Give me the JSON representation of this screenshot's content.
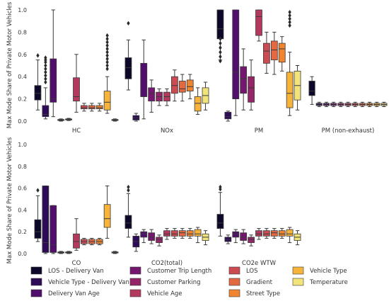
{
  "chart_data": {
    "type": "box",
    "ylabel": "Max Mode Share of Private Motor Vehicles",
    "ylim": [
      0,
      1.0
    ],
    "yticks": [
      "0.0",
      "0.2",
      "0.4",
      "0.6",
      "0.8",
      "1.0"
    ],
    "grid": false,
    "legend_position": "bottom",
    "series": [
      {
        "name": "LOS - Delivery Van",
        "color": "#0d0829"
      },
      {
        "name": "Vehicle Type - Delivery Van",
        "color": "#2d0b59"
      },
      {
        "name": "Delivery Van Age",
        "color": "#520e6d"
      },
      {
        "name": "Customer Trip Length",
        "color": "#74176e"
      },
      {
        "name": "Customer Parking",
        "color": "#952567"
      },
      {
        "name": "Vehicle Age",
        "color": "#b33a5d"
      },
      {
        "name": "LOS",
        "color": "#cc4b52"
      },
      {
        "name": "Gradient",
        "color": "#e46840"
      },
      {
        "name": "Street Type",
        "color": "#f1842e"
      },
      {
        "name": "Vehicle Type",
        "color": "#f6b43c"
      },
      {
        "name": "Temperature",
        "color": "#f2e47a"
      }
    ],
    "panels": [
      {
        "label": "HC",
        "boxes": [
          {
            "s": 0,
            "min": 0.1,
            "q1": 0.19,
            "med": 0.25,
            "q3": 0.32,
            "max": 0.55,
            "out": [
              0.59
            ]
          },
          {
            "s": 1,
            "min": 0.02,
            "q1": 0.04,
            "med": 0.06,
            "q3": 0.14,
            "max": 0.3,
            "out": [
              0.35,
              0.38,
              0.41,
              0.44,
              0.47,
              0.5,
              0.53,
              0.55,
              0.57
            ]
          },
          {
            "s": 2,
            "min": 0.04,
            "q1": 0.17,
            "med": 0.2,
            "q3": 0.56,
            "max": 1.0,
            "out": []
          },
          {
            "s": 3,
            "min": 0.0,
            "q1": 0.005,
            "med": 0.01,
            "q3": 0.015,
            "max": 0.02,
            "out": []
          },
          {
            "s": 4,
            "min": 0.005,
            "q1": 0.01,
            "med": 0.015,
            "q3": 0.02,
            "max": 0.025,
            "out": []
          },
          {
            "s": 5,
            "min": 0.08,
            "q1": 0.18,
            "med": 0.22,
            "q3": 0.39,
            "max": 0.6,
            "out": []
          },
          {
            "s": 6,
            "min": 0.09,
            "q1": 0.11,
            "med": 0.12,
            "q3": 0.14,
            "max": 0.16,
            "out": []
          },
          {
            "s": 7,
            "min": 0.09,
            "q1": 0.11,
            "med": 0.12,
            "q3": 0.14,
            "max": 0.16,
            "out": []
          },
          {
            "s": 8,
            "min": 0.09,
            "q1": 0.11,
            "med": 0.12,
            "q3": 0.14,
            "max": 0.16,
            "out": []
          },
          {
            "s": 9,
            "min": 0.07,
            "q1": 0.1,
            "med": 0.17,
            "q3": 0.27,
            "max": 0.4,
            "out": [
              0.47,
              0.5,
              0.53,
              0.56,
              0.59,
              0.62,
              0.65,
              0.68,
              0.71,
              0.74,
              0.77
            ]
          },
          {
            "s": 10,
            "min": 0.0,
            "q1": 0.005,
            "med": 0.01,
            "q3": 0.015,
            "max": 0.02,
            "out": []
          }
        ]
      },
      {
        "label": "NOx",
        "boxes": [
          {
            "s": 0,
            "min": 0.28,
            "q1": 0.38,
            "med": 0.48,
            "q3": 0.57,
            "max": 0.73,
            "out": [
              0.88
            ]
          },
          {
            "s": 1,
            "min": 0.0,
            "q1": 0.01,
            "med": 0.03,
            "q3": 0.05,
            "max": 0.07,
            "out": []
          },
          {
            "s": 2,
            "min": 0.02,
            "q1": 0.22,
            "med": 0.22,
            "q3": 0.52,
            "max": 0.73,
            "out": []
          },
          {
            "s": 3,
            "min": 0.08,
            "q1": 0.18,
            "med": 0.25,
            "q3": 0.3,
            "max": 0.37,
            "out": []
          },
          {
            "s": 4,
            "min": 0.14,
            "q1": 0.18,
            "med": 0.22,
            "q3": 0.26,
            "max": 0.29,
            "out": []
          },
          {
            "s": 5,
            "min": 0.14,
            "q1": 0.18,
            "med": 0.22,
            "q3": 0.26,
            "max": 0.29,
            "out": []
          },
          {
            "s": 6,
            "min": 0.18,
            "q1": 0.25,
            "med": 0.32,
            "q3": 0.4,
            "max": 0.46,
            "out": []
          },
          {
            "s": 7,
            "min": 0.18,
            "q1": 0.26,
            "med": 0.29,
            "q3": 0.36,
            "max": 0.42,
            "out": []
          },
          {
            "s": 8,
            "min": 0.2,
            "q1": 0.27,
            "med": 0.31,
            "q3": 0.37,
            "max": 0.42,
            "out": []
          },
          {
            "s": 9,
            "min": 0.06,
            "q1": 0.09,
            "med": 0.16,
            "q3": 0.22,
            "max": 0.3,
            "out": []
          },
          {
            "s": 10,
            "min": 0.1,
            "q1": 0.16,
            "med": 0.23,
            "q3": 0.3,
            "max": 0.35,
            "out": []
          }
        ]
      },
      {
        "label": "PM",
        "boxes": [
          {
            "s": 0,
            "min": 0.55,
            "q1": 0.74,
            "med": 0.83,
            "q3": 1.0,
            "max": 1.0,
            "out": [
              0.54,
              0.58,
              0.62,
              0.66,
              0.7,
              0.74
            ]
          },
          {
            "s": 1,
            "min": 0.0,
            "q1": 0.02,
            "med": 0.04,
            "q3": 0.08,
            "max": 0.09,
            "out": []
          },
          {
            "s": 2,
            "min": 0.05,
            "q1": 0.2,
            "med": 0.44,
            "q3": 1.0,
            "max": 1.0,
            "out": []
          },
          {
            "s": 3,
            "min": 0.1,
            "q1": 0.25,
            "med": 0.38,
            "q3": 0.49,
            "max": 0.65,
            "out": []
          },
          {
            "s": 4,
            "min": 0.1,
            "q1": 0.17,
            "med": 0.3,
            "q3": 0.4,
            "max": 0.55,
            "out": []
          },
          {
            "s": 5,
            "min": 0.72,
            "q1": 0.77,
            "med": 0.94,
            "q3": 1.0,
            "max": 1.0,
            "out": []
          },
          {
            "s": 6,
            "min": 0.43,
            "q1": 0.52,
            "med": 0.63,
            "q3": 0.7,
            "max": 0.8,
            "out": []
          },
          {
            "s": 7,
            "min": 0.42,
            "q1": 0.55,
            "med": 0.64,
            "q3": 0.72,
            "max": 0.8,
            "out": []
          },
          {
            "s": 8,
            "min": 0.45,
            "q1": 0.53,
            "med": 0.65,
            "q3": 0.7,
            "max": 0.76,
            "out": []
          },
          {
            "s": 9,
            "min": 0.05,
            "q1": 0.12,
            "med": 0.25,
            "q3": 0.44,
            "max": 0.62,
            "out": [
              0.86,
              0.89,
              0.92,
              0.95,
              0.98
            ]
          },
          {
            "s": 10,
            "min": 0.1,
            "q1": 0.19,
            "med": 0.32,
            "q3": 0.45,
            "max": 0.5,
            "out": []
          }
        ]
      },
      {
        "label": "PM (non-exhaust)",
        "boxes": [
          {
            "s": 0,
            "min": 0.15,
            "q1": 0.23,
            "med": 0.27,
            "q3": 0.36,
            "max": 0.4,
            "out": []
          },
          {
            "s": 1,
            "min": 0.13,
            "q1": 0.14,
            "med": 0.15,
            "q3": 0.16,
            "max": 0.17,
            "out": []
          },
          {
            "s": 2,
            "min": 0.13,
            "q1": 0.14,
            "med": 0.15,
            "q3": 0.16,
            "max": 0.17,
            "out": []
          },
          {
            "s": 3,
            "min": 0.13,
            "q1": 0.14,
            "med": 0.15,
            "q3": 0.16,
            "max": 0.17,
            "out": []
          },
          {
            "s": 4,
            "min": 0.13,
            "q1": 0.14,
            "med": 0.15,
            "q3": 0.16,
            "max": 0.17,
            "out": []
          },
          {
            "s": 5,
            "min": 0.13,
            "q1": 0.14,
            "med": 0.15,
            "q3": 0.16,
            "max": 0.17,
            "out": []
          },
          {
            "s": 6,
            "min": 0.13,
            "q1": 0.14,
            "med": 0.15,
            "q3": 0.16,
            "max": 0.17,
            "out": []
          },
          {
            "s": 7,
            "min": 0.13,
            "q1": 0.14,
            "med": 0.15,
            "q3": 0.16,
            "max": 0.17,
            "out": []
          },
          {
            "s": 8,
            "min": 0.13,
            "q1": 0.14,
            "med": 0.15,
            "q3": 0.16,
            "max": 0.17,
            "out": []
          },
          {
            "s": 9,
            "min": 0.13,
            "q1": 0.14,
            "med": 0.15,
            "q3": 0.16,
            "max": 0.17,
            "out": []
          },
          {
            "s": 10,
            "min": 0.13,
            "q1": 0.14,
            "med": 0.15,
            "q3": 0.16,
            "max": 0.17,
            "out": []
          }
        ]
      },
      {
        "label": "CO",
        "boxes": [
          {
            "s": 0,
            "min": 0.11,
            "q1": 0.14,
            "med": 0.2,
            "q3": 0.31,
            "max": 0.53,
            "out": [
              0.58
            ]
          },
          {
            "s": 1,
            "min": 0.0,
            "q1": 0.01,
            "med": 0.1,
            "q3": 0.62,
            "max": 0.62,
            "out": []
          },
          {
            "s": 2,
            "min": 0.0,
            "q1": 0.01,
            "med": 0.08,
            "q3": 0.44,
            "max": 0.44,
            "out": []
          },
          {
            "s": 3,
            "min": 0.0,
            "q1": 0.005,
            "med": 0.01,
            "q3": 0.015,
            "max": 0.02,
            "out": []
          },
          {
            "s": 4,
            "min": 0.0,
            "q1": 0.005,
            "med": 0.01,
            "q3": 0.015,
            "max": 0.02,
            "out": []
          },
          {
            "s": 5,
            "min": 0.03,
            "q1": 0.05,
            "med": 0.11,
            "q3": 0.18,
            "max": 0.32,
            "out": []
          },
          {
            "s": 6,
            "min": 0.08,
            "q1": 0.09,
            "med": 0.11,
            "q3": 0.13,
            "max": 0.14,
            "out": []
          },
          {
            "s": 7,
            "min": 0.08,
            "q1": 0.09,
            "med": 0.11,
            "q3": 0.13,
            "max": 0.14,
            "out": []
          },
          {
            "s": 8,
            "min": 0.08,
            "q1": 0.09,
            "med": 0.11,
            "q3": 0.13,
            "max": 0.14,
            "out": []
          },
          {
            "s": 9,
            "min": 0.14,
            "q1": 0.24,
            "med": 0.32,
            "q3": 0.45,
            "max": 0.62,
            "out": []
          },
          {
            "s": 10,
            "min": 0.0,
            "q1": 0.005,
            "med": 0.01,
            "q3": 0.015,
            "max": 0.02,
            "out": []
          }
        ]
      },
      {
        "label": "CO2(total)",
        "boxes": [
          {
            "s": 0,
            "min": 0.15,
            "q1": 0.23,
            "med": 0.28,
            "q3": 0.35,
            "max": 0.55,
            "out": [
              0.58,
              0.61
            ]
          },
          {
            "s": 1,
            "min": 0.02,
            "q1": 0.06,
            "med": 0.11,
            "q3": 0.16,
            "max": 0.18,
            "out": []
          },
          {
            "s": 2,
            "min": 0.1,
            "q1": 0.15,
            "med": 0.18,
            "q3": 0.2,
            "max": 0.22,
            "out": []
          },
          {
            "s": 3,
            "min": 0.09,
            "q1": 0.12,
            "med": 0.15,
            "q3": 0.19,
            "max": 0.22,
            "out": []
          },
          {
            "s": 4,
            "min": 0.07,
            "q1": 0.1,
            "med": 0.13,
            "q3": 0.15,
            "max": 0.17,
            "out": []
          },
          {
            "s": 5,
            "min": 0.13,
            "q1": 0.16,
            "med": 0.18,
            "q3": 0.21,
            "max": 0.23,
            "out": []
          },
          {
            "s": 6,
            "min": 0.14,
            "q1": 0.16,
            "med": 0.18,
            "q3": 0.21,
            "max": 0.23,
            "out": []
          },
          {
            "s": 7,
            "min": 0.14,
            "q1": 0.16,
            "med": 0.19,
            "q3": 0.21,
            "max": 0.23,
            "out": []
          },
          {
            "s": 8,
            "min": 0.14,
            "q1": 0.16,
            "med": 0.18,
            "q3": 0.21,
            "max": 0.23,
            "out": []
          },
          {
            "s": 9,
            "min": 0.1,
            "q1": 0.16,
            "med": 0.18,
            "q3": 0.22,
            "max": 0.24,
            "out": []
          },
          {
            "s": 10,
            "min": 0.08,
            "q1": 0.12,
            "med": 0.15,
            "q3": 0.18,
            "max": 0.21,
            "out": []
          }
        ]
      },
      {
        "label": "CO2e WTW",
        "boxes": [
          {
            "s": 0,
            "min": 0.16,
            "q1": 0.23,
            "med": 0.28,
            "q3": 0.36,
            "max": 0.56,
            "out": [
              0.59,
              0.61
            ]
          },
          {
            "s": 1,
            "min": 0.09,
            "q1": 0.11,
            "med": 0.13,
            "q3": 0.15,
            "max": 0.17,
            "out": []
          },
          {
            "s": 2,
            "min": 0.1,
            "q1": 0.15,
            "med": 0.18,
            "q3": 0.2,
            "max": 0.22,
            "out": []
          },
          {
            "s": 3,
            "min": 0.09,
            "q1": 0.12,
            "med": 0.15,
            "q3": 0.19,
            "max": 0.22,
            "out": []
          },
          {
            "s": 4,
            "min": 0.07,
            "q1": 0.1,
            "med": 0.13,
            "q3": 0.15,
            "max": 0.17,
            "out": []
          },
          {
            "s": 5,
            "min": 0.13,
            "q1": 0.16,
            "med": 0.18,
            "q3": 0.21,
            "max": 0.23,
            "out": []
          },
          {
            "s": 6,
            "min": 0.14,
            "q1": 0.16,
            "med": 0.18,
            "q3": 0.21,
            "max": 0.23,
            "out": []
          },
          {
            "s": 7,
            "min": 0.14,
            "q1": 0.16,
            "med": 0.19,
            "q3": 0.21,
            "max": 0.23,
            "out": []
          },
          {
            "s": 8,
            "min": 0.14,
            "q1": 0.16,
            "med": 0.18,
            "q3": 0.21,
            "max": 0.23,
            "out": []
          },
          {
            "s": 9,
            "min": 0.1,
            "q1": 0.16,
            "med": 0.18,
            "q3": 0.22,
            "max": 0.24,
            "out": []
          },
          {
            "s": 10,
            "min": 0.08,
            "q1": 0.12,
            "med": 0.15,
            "q3": 0.18,
            "max": 0.21,
            "out": []
          }
        ]
      }
    ]
  }
}
